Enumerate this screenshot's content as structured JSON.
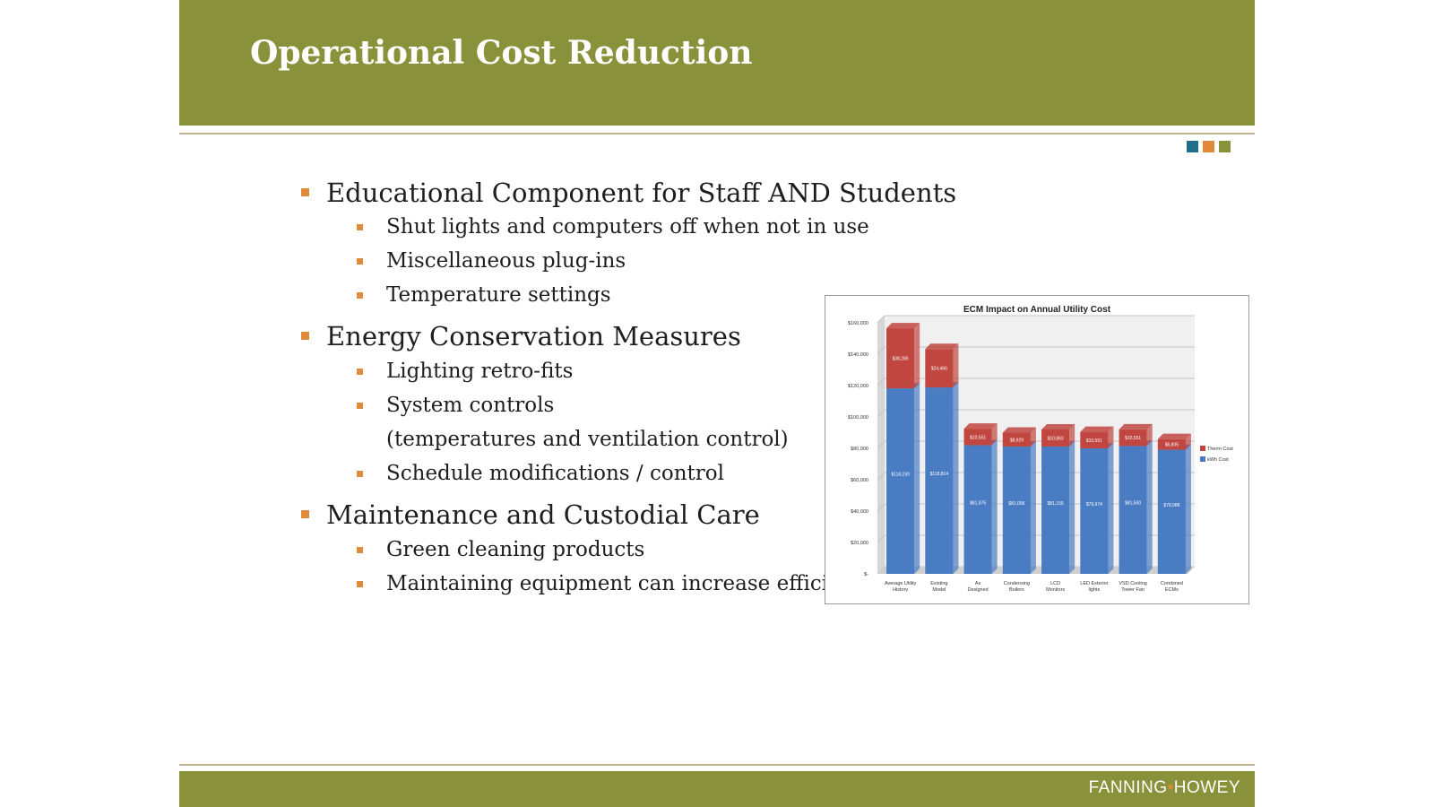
{
  "slide": {
    "title": "Operational Cost Reduction",
    "bullets": [
      {
        "level": 1,
        "text": "Educational Component for Staff AND Students"
      },
      {
        "level": 2,
        "text": "Shut lights and computers off when not in use"
      },
      {
        "level": 2,
        "text": "Miscellaneous plug-ins"
      },
      {
        "level": 2,
        "text": "Temperature settings"
      },
      {
        "level": 1,
        "text": "Energy Conservation Measures"
      },
      {
        "level": 2,
        "text": "Lighting retro-fits"
      },
      {
        "level": 2,
        "text": "System controls"
      },
      {
        "level": 2,
        "text": "(temperatures and ventilation control)",
        "continuation": true
      },
      {
        "level": 2,
        "text": "Schedule modifications / control"
      },
      {
        "level": 1,
        "text": "Maintenance and Custodial Care"
      },
      {
        "level": 2,
        "text": "Green cleaning products"
      },
      {
        "level": 2,
        "text": "Maintaining equipment can increase efficiency"
      }
    ]
  },
  "footer": {
    "logo_left": "FANNING",
    "logo_dot": "•",
    "logo_right": "HOWEY"
  },
  "colors": {
    "band": "#89913a",
    "rule": "#c2b691",
    "bullet_marker": "#e08a3c",
    "decor_squares": [
      "#1f6f8b",
      "#e08a3c",
      "#89913a"
    ],
    "kwh_series": "#4a7cc4",
    "therm_series": "#c0463f"
  },
  "chart_data": {
    "type": "bar",
    "stacked": true,
    "title": "ECM Impact on Annual Utility Cost",
    "categories": [
      "Average Utility History",
      "Existing Model",
      "As Designed",
      "Condensing Boilers",
      "LCD Monitors",
      "LED Exterior lights",
      "VSD Cooling Tower Fan",
      "Combined ECMs"
    ],
    "series": [
      {
        "name": "kWh Cost",
        "values": [
          118230,
          118814,
          81975,
          81096,
          81155,
          79974,
          81500,
          79088
        ],
        "labels": [
          "$118,230",
          "$118,814",
          "$81,975",
          "$81,096",
          "$81,155",
          "$79,974",
          "$81,500",
          "$79,088"
        ]
      },
      {
        "name": "Therm Cost",
        "values": [
          38285,
          24466,
          10551,
          8929,
          10863,
          10551,
          10551,
          6805
        ],
        "labels": [
          "$38,285",
          "$24,466",
          "$10,551",
          "$8,929",
          "$10,863",
          "$10,551",
          "$10,551",
          "$6,805"
        ]
      }
    ],
    "legend_order": [
      "Therm Cost",
      "kWh Cost"
    ],
    "ylim": [
      0,
      160000
    ],
    "yticks": [
      0,
      20000,
      40000,
      60000,
      80000,
      100000,
      120000,
      140000,
      160000
    ],
    "ytick_labels": [
      "$-",
      "$20,000",
      "$40,000",
      "$60,000",
      "$80,000",
      "$100,000",
      "$120,000",
      "$140,000",
      "$160,000"
    ],
    "grid": true,
    "legend_position": "right"
  }
}
